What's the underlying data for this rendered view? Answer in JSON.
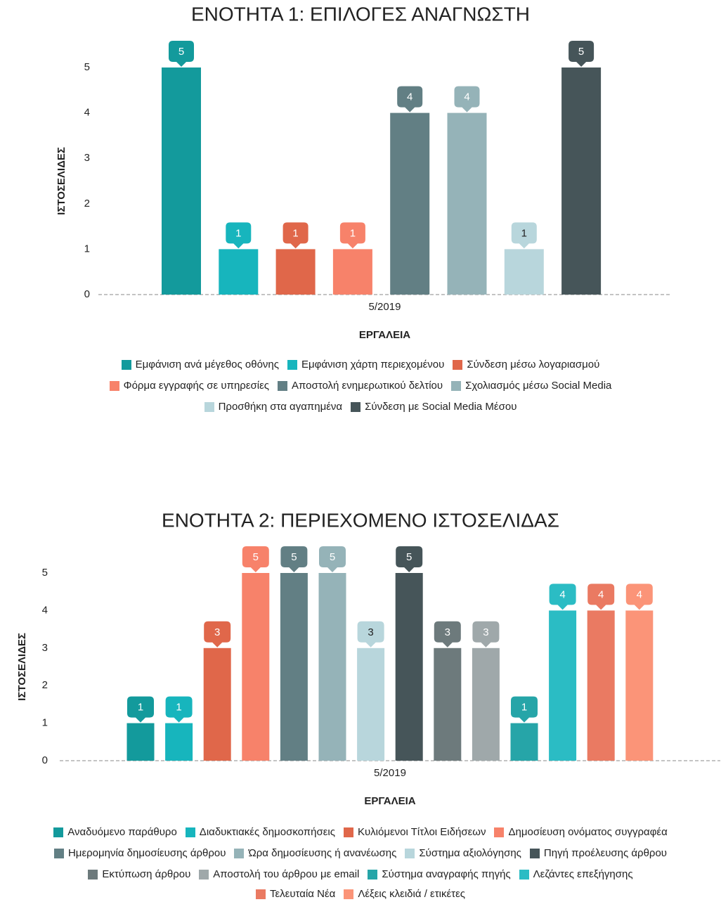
{
  "chart_data": [
    {
      "type": "bar",
      "title": "ΕΝΟΤΗΤΑ 1: ΕΠΙΛΟΓΕΣ ΑΝΑΓΝΩΣΤΗ",
      "y_label": "ΙΣΤΟΣΕΛΙΔΕΣ",
      "x_label": "ΕΡΓΑΛΕΙΑ",
      "categories": [
        "5/2019"
      ],
      "ylim": [
        0,
        5
      ],
      "yticks": [
        0,
        1,
        2,
        3,
        4,
        5
      ],
      "series": [
        {
          "name": "Εμφάνιση ανά μέγεθος οθόνης",
          "color": "#139a9c",
          "values": [
            5
          ]
        },
        {
          "name": "Εμφάνιση χάρτη περιεχομένου",
          "color": "#17b5bd",
          "values": [
            1
          ]
        },
        {
          "name": "Σύνδεση μέσω λογαριασμού",
          "color": "#e0674a",
          "values": [
            1
          ]
        },
        {
          "name": "Φόρμα εγγραφής σε υπηρεσίες",
          "color": "#f7826a",
          "values": [
            1
          ]
        },
        {
          "name": "Αποστολή ενημερωτικού δελτίου",
          "color": "#627f84",
          "values": [
            4
          ]
        },
        {
          "name": "Σχολιασμός μέσω Social Media",
          "color": "#95b3b8",
          "values": [
            4
          ]
        },
        {
          "name": "Προσθήκη στα αγαπημένα",
          "color": "#b8d6dc",
          "values": [
            1
          ]
        },
        {
          "name": "Σύνδεση με Social Media Μέσου",
          "color": "#465559",
          "values": [
            5
          ]
        }
      ]
    },
    {
      "type": "bar",
      "title": "ΕΝΟΤΗΤΑ 2: ΠΕΡΙΕΧΟΜΕΝΟ ΙΣΤΟΣΕΛΙΔΑΣ",
      "y_label": "ΙΣΤΟΣΕΛΙΔΕΣ",
      "x_label": "ΕΡΓΑΛΕΙΑ",
      "categories": [
        "5/2019"
      ],
      "ylim": [
        0,
        5
      ],
      "yticks": [
        0,
        1,
        2,
        3,
        4,
        5
      ],
      "series": [
        {
          "name": "Αναδυόμενο παράθυρο",
          "color": "#139a9c",
          "values": [
            1
          ]
        },
        {
          "name": "Διαδυκτιακές δημοσκοπήσεις",
          "color": "#17b5bd",
          "values": [
            1
          ]
        },
        {
          "name": "Κυλιόμενοι Τίτλοι Ειδήσεων",
          "color": "#e0674a",
          "values": [
            3
          ]
        },
        {
          "name": "Δημοσίευση ονόματος συγγραφέα",
          "color": "#f7826a",
          "values": [
            5
          ]
        },
        {
          "name": "Ημερομηνία δημοσίευσης άρθρου",
          "color": "#627f84",
          "values": [
            5
          ]
        },
        {
          "name": "Ώρα δημοσίευσης ή ανανέωσης",
          "color": "#95b3b8",
          "values": [
            5
          ]
        },
        {
          "name": "Σύστημα αξιολόγησης",
          "color": "#b8d6dc",
          "values": [
            3
          ]
        },
        {
          "name": "Πηγή προέλευσης άρθρου",
          "color": "#465559",
          "values": [
            5
          ]
        },
        {
          "name": "Εκτύπωση άρθρου",
          "color": "#6d7a7c",
          "values": [
            3
          ]
        },
        {
          "name": "Αποστολή του άρθρου με email",
          "color": "#9fa8aa",
          "values": [
            3
          ]
        },
        {
          "name": "Σύστημα αναγραφής πηγής",
          "color": "#26a5a8",
          "values": [
            1
          ]
        },
        {
          "name": "Λεζάντες επεξήγησης",
          "color": "#2bbcc4",
          "values": [
            4
          ]
        },
        {
          "name": "Τελευταία Νέα",
          "color": "#ea7a62",
          "values": [
            4
          ]
        },
        {
          "name": "Λέξεις κλειδιά / ετικέτες",
          "color": "#fb9478",
          "values": [
            4
          ]
        }
      ]
    }
  ]
}
